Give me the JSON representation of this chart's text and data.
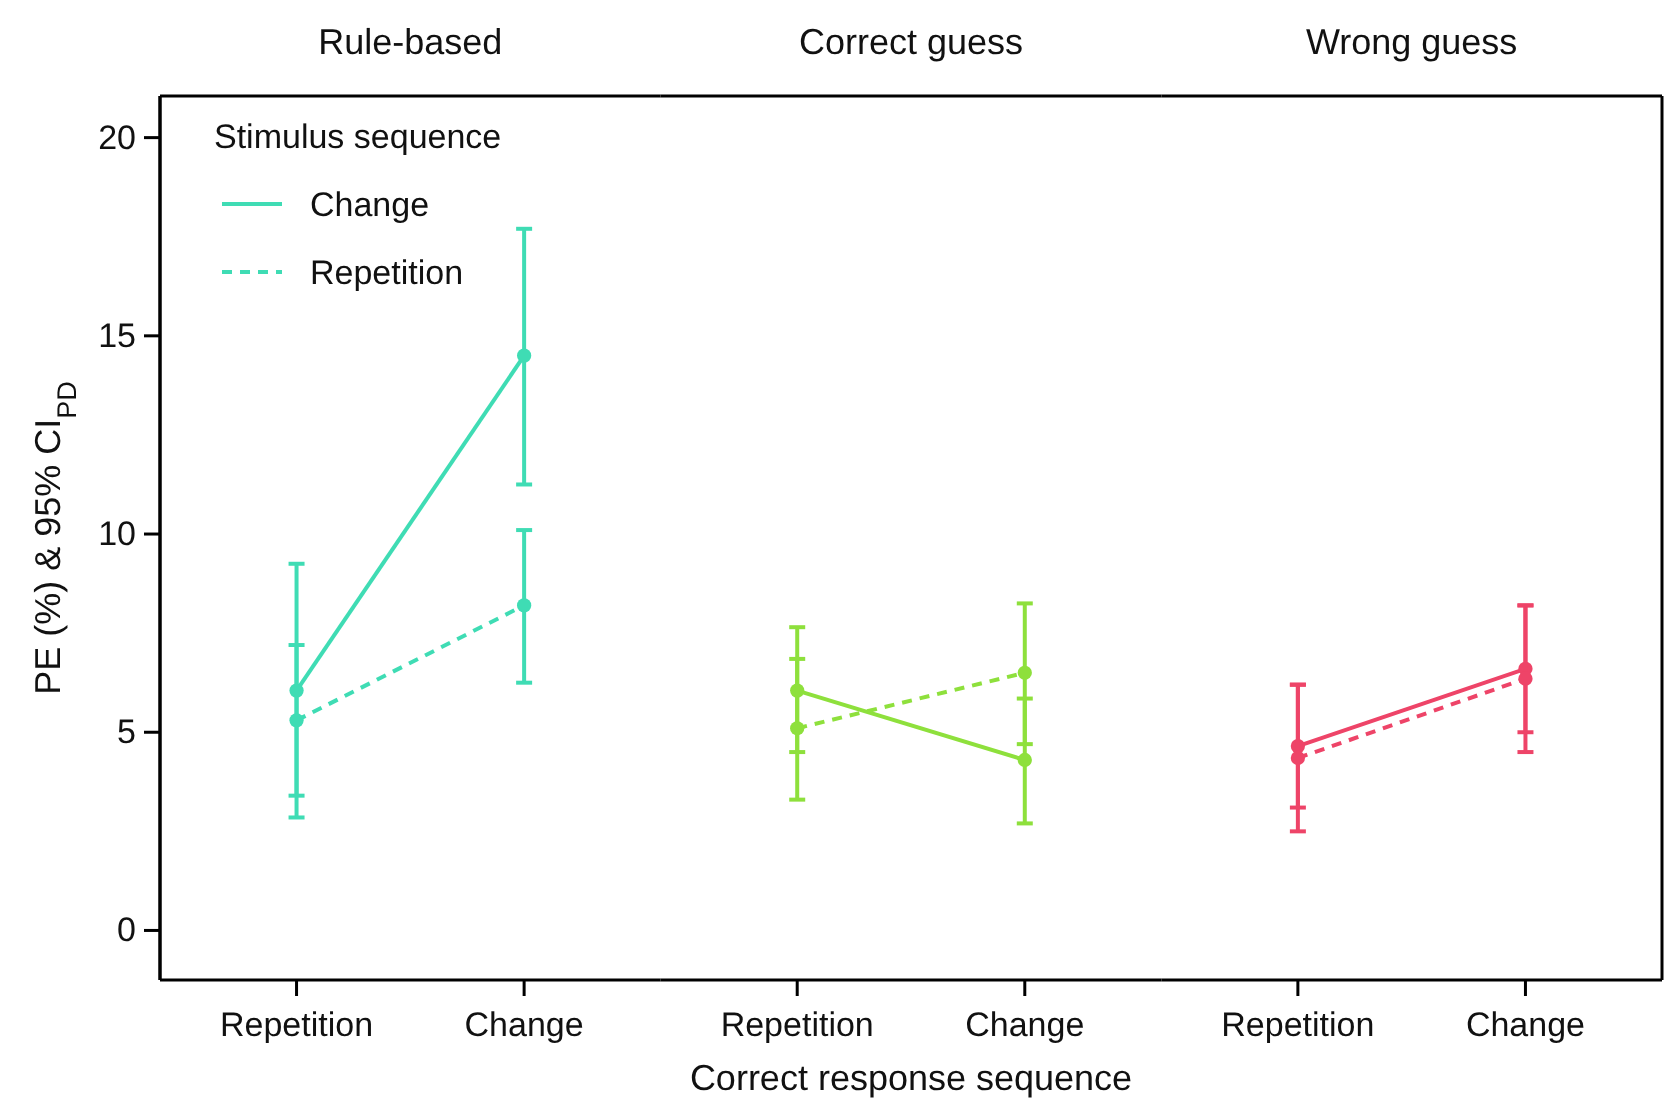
{
  "chart_data": [
    {
      "type": "line",
      "title": "Rule-based",
      "categories": [
        "Repetition",
        "Change"
      ],
      "ylabel": "PE (%) & 95% CI$_{PD}$",
      "ylim": [
        -1.25,
        21.05
      ],
      "yticks": [
        0,
        5,
        10,
        15,
        20
      ],
      "marker": "circle",
      "legend": "top left",
      "legend_title": "Stimulus sequence",
      "series": [
        {
          "name": "Change",
          "color": "#3fdcb4",
          "line_style": "solid",
          "values": [
            6.05,
            14.5
          ],
          "errors": [
            [
              2.85,
              9.25
            ],
            [
              11.25,
              17.7
            ]
          ]
        },
        {
          "name": "Repetition",
          "color": "#3fdcb4",
          "line_style": "dashed",
          "values": [
            5.3,
            8.2
          ],
          "errors": [
            [
              3.4,
              7.2
            ],
            [
              6.25,
              10.1
            ]
          ]
        }
      ]
    },
    {
      "type": "line",
      "title": "Correct guess",
      "categories": [
        "Repetition",
        "Change"
      ],
      "xlabel": "Correct response sequence",
      "ylim": [
        -1.25,
        21.05
      ],
      "tick_labels": "x",
      "marker": "circle",
      "series": [
        {
          "color": "#8ee03c",
          "line_style": "solid",
          "values": [
            6.05,
            4.3
          ],
          "errors": [
            [
              4.5,
              7.65
            ],
            [
              2.7,
              5.85
            ]
          ]
        },
        {
          "color": "#8ee03c",
          "line_style": "dashed",
          "values": [
            5.1,
            6.5
          ],
          "errors": [
            [
              3.3,
              6.85
            ],
            [
              4.7,
              8.25
            ]
          ]
        }
      ]
    },
    {
      "type": "line",
      "title": "Wrong guess",
      "categories": [
        "Repetition",
        "Change"
      ],
      "ylim": [
        -1.25,
        21.05
      ],
      "tick_labels": "x",
      "marker": "circle",
      "series": [
        {
          "color": "#ee4468",
          "line_style": "solid",
          "values": [
            4.65,
            6.6
          ],
          "errors": [
            [
              3.1,
              6.2
            ],
            [
              5.0,
              8.2
            ]
          ]
        },
        {
          "color": "#ee4468",
          "line_style": "dashed",
          "values": [
            4.35,
            6.35
          ],
          "errors": [
            [
              2.5,
              6.2
            ],
            [
              4.5,
              8.2
            ]
          ]
        }
      ]
    }
  ]
}
